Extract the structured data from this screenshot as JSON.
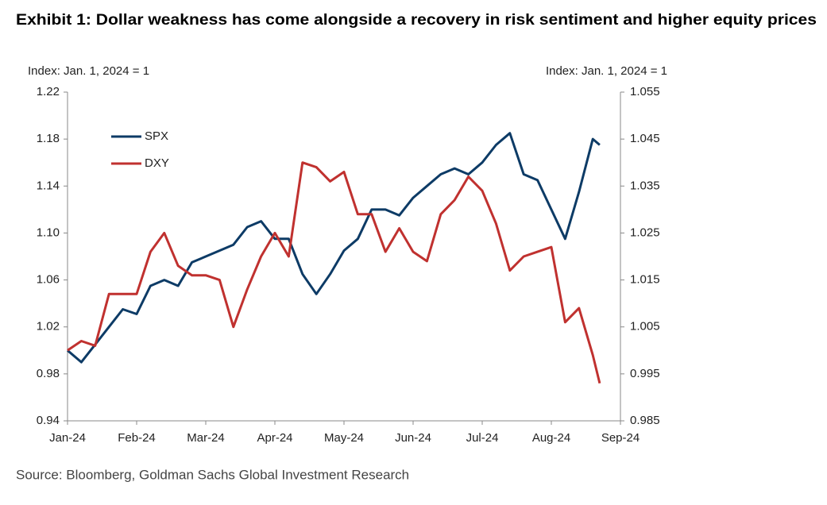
{
  "chart_data": {
    "type": "line",
    "title": "Exhibit 1: Dollar weakness has come alongside a recovery in risk sentiment and higher equity prices",
    "y_label": "Index: Jan. 1, 2024 = 1",
    "y2_label": "Index: Jan. 1, 2024 = 1",
    "source": "Source: Bloomberg, Goldman Sachs Global Investment Research",
    "x": [
      0,
      0.2,
      0.4,
      0.6,
      0.8,
      1.0,
      1.2,
      1.4,
      1.6,
      1.8,
      2.0,
      2.2,
      2.4,
      2.6,
      2.8,
      3.0,
      3.2,
      3.4,
      3.6,
      3.8,
      4.0,
      4.2,
      4.4,
      4.6,
      4.8,
      5.0,
      5.2,
      5.4,
      5.6,
      5.8,
      6.0,
      6.2,
      6.4,
      6.6,
      6.8,
      7.0,
      7.2,
      7.4,
      7.6,
      7.7
    ],
    "xlim": [
      0,
      8
    ],
    "xticks": [
      {
        "value": 0,
        "label": "Jan-24"
      },
      {
        "value": 1,
        "label": "Feb-24"
      },
      {
        "value": 2,
        "label": "Mar-24"
      },
      {
        "value": 3,
        "label": "Apr-24"
      },
      {
        "value": 4,
        "label": "May-24"
      },
      {
        "value": 5,
        "label": "Jun-24"
      },
      {
        "value": 6,
        "label": "Jul-24"
      },
      {
        "value": 7,
        "label": "Aug-24"
      },
      {
        "value": 8,
        "label": "Sep-24"
      }
    ],
    "ylim": [
      0.94,
      1.22
    ],
    "yticks": [
      0.94,
      0.98,
      1.02,
      1.06,
      {
        "value": 1.1,
        "label": "1.10"
      },
      1.14,
      1.18,
      1.22
    ],
    "y2lim": [
      0.985,
      1.055
    ],
    "y2ticks": [
      0.985,
      0.995,
      1.005,
      1.015,
      1.025,
      1.035,
      1.045,
      1.055
    ],
    "legend": "upper left",
    "series": [
      {
        "name": "SPX",
        "color": "#0d3b66",
        "values": [
          1.0,
          0.99,
          1.005,
          1.02,
          1.035,
          1.031,
          1.055,
          1.06,
          1.055,
          1.075,
          1.08,
          1.085,
          1.09,
          1.105,
          1.11,
          1.095,
          1.095,
          1.065,
          1.048,
          1.065,
          1.085,
          1.095,
          1.12,
          1.12,
          1.115,
          1.13,
          1.14,
          1.15,
          1.155,
          1.15,
          1.16,
          1.175,
          1.185,
          1.15,
          1.145,
          1.12,
          1.095,
          1.135,
          1.18,
          1.175
        ]
      },
      {
        "name": "DXY",
        "color": "#c0312f",
        "axis": "y2",
        "values": [
          1.0,
          1.002,
          1.001,
          1.012,
          1.012,
          1.012,
          1.021,
          1.025,
          1.018,
          1.016,
          1.016,
          1.015,
          1.005,
          1.013,
          1.02,
          1.025,
          1.02,
          1.04,
          1.039,
          1.036,
          1.038,
          1.029,
          1.029,
          1.021,
          1.026,
          1.021,
          1.019,
          1.029,
          1.032,
          1.037,
          1.034,
          1.027,
          1.017,
          1.02,
          1.021,
          1.022,
          1.006,
          1.009,
          0.999,
          0.993
        ]
      }
    ]
  }
}
